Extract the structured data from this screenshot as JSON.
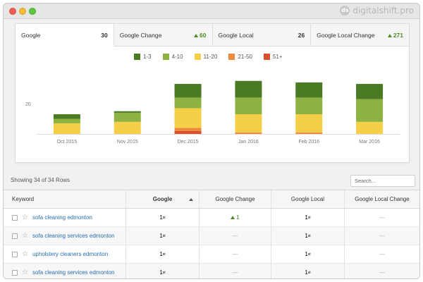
{
  "brand": {
    "name": "digitalshift.pro",
    "mark": "ds"
  },
  "tabs": [
    {
      "label": "Google",
      "value": "30",
      "trend": ""
    },
    {
      "label": "Google Change",
      "value": "60",
      "trend": "up"
    },
    {
      "label": "Google Local",
      "value": "26",
      "trend": ""
    },
    {
      "label": "Google Local Change",
      "value": "271",
      "trend": "up"
    }
  ],
  "legend": [
    {
      "label": "1-3",
      "color": "#4a7a24"
    },
    {
      "label": "4-10",
      "color": "#8db241"
    },
    {
      "label": "11-20",
      "color": "#f5cf47"
    },
    {
      "label": "21-50",
      "color": "#ee8a3a"
    },
    {
      "label": "51+",
      "color": "#d9502f"
    }
  ],
  "chart_data": {
    "type": "bar",
    "stacked": true,
    "categories": [
      "Oct 2015",
      "Nov 2015",
      "Dec 2015",
      "Jan 2016",
      "Feb 2016",
      "Mar 2016"
    ],
    "series": [
      {
        "name": "1-3",
        "color": "#4a7a24",
        "values": [
          3,
          1,
          9,
          11,
          10,
          10
        ]
      },
      {
        "name": "4-10",
        "color": "#8db241",
        "values": [
          3,
          6,
          7,
          11,
          11,
          15
        ]
      },
      {
        "name": "11-20",
        "color": "#f5cf47",
        "values": [
          7,
          8,
          13,
          12,
          12,
          8
        ]
      },
      {
        "name": "21-50",
        "color": "#ee8a3a",
        "values": [
          0,
          0,
          2,
          1,
          1,
          0
        ]
      },
      {
        "name": "51+",
        "color": "#d9502f",
        "values": [
          0,
          0,
          2,
          0,
          0,
          0
        ]
      }
    ],
    "y_ticks": [
      "20"
    ],
    "ylim": [
      0,
      40
    ]
  },
  "table": {
    "summary": "Showing 34 of 34 Rows",
    "search_placeholder": "Search...",
    "columns": [
      "Keyword",
      "Google",
      "Google Change",
      "Google Local",
      "Google Local Change"
    ],
    "rows": [
      {
        "keyword": "sofa cleaning edmonton",
        "google": "1",
        "google_sup": "st",
        "change": "1",
        "change_trend": "up",
        "local": "1",
        "local_sup": "st",
        "local_change": "—"
      },
      {
        "keyword": "sofa cleaning services edmonton",
        "google": "1",
        "google_sup": "st",
        "change": "—",
        "change_trend": "",
        "local": "1",
        "local_sup": "st",
        "local_change": "—"
      },
      {
        "keyword": "upholstery cleaners edmonton",
        "google": "1",
        "google_sup": "st",
        "change": "—",
        "change_trend": "",
        "local": "1",
        "local_sup": "st",
        "local_change": "—"
      },
      {
        "keyword": "sofa cleaning services edmonton",
        "google": "1",
        "google_sup": "st",
        "change": "—",
        "change_trend": "",
        "local": "1",
        "local_sup": "st",
        "local_change": "—"
      }
    ]
  }
}
